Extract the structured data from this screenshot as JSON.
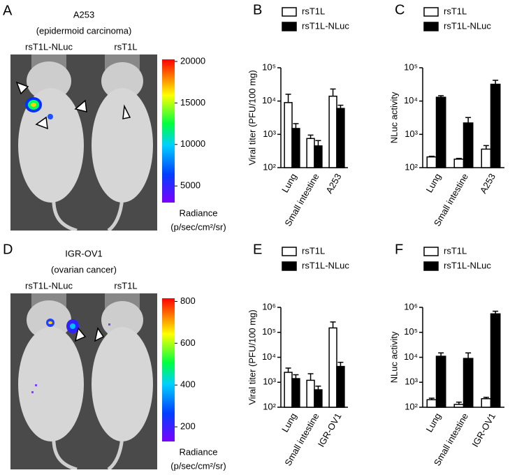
{
  "images": [
    {
      "panel": "A",
      "title": "A253",
      "subtitle": "(epidermoid carcinoma)",
      "mouse_labels": [
        "rsT1L-NLuc",
        "rsT1L"
      ],
      "colorbar": {
        "lim": [
          3000,
          20250
        ],
        "ticks": [
          5000,
          10000,
          15000,
          20000
        ],
        "label": "Radiance",
        "unit": "(p/sec/cm²/sr)"
      }
    },
    {
      "panel": "D",
      "title": "IGR-OV1",
      "subtitle": "(ovarian cancer)",
      "mouse_labels": [
        "rsT1L-NLuc",
        "rsT1L"
      ],
      "colorbar": {
        "lim": [
          130,
          815
        ],
        "ticks": [
          200,
          400,
          600,
          800
        ],
        "label": "Radiance",
        "unit": "(p/sec/cm²/sr)"
      }
    }
  ],
  "chart_data": [
    {
      "type": "bar",
      "panel": "B",
      "ylabel": "Viral titer (PFU/100 mg)",
      "log_scale": true,
      "categories": [
        "Lung",
        "Small intestine",
        "A253"
      ],
      "series": [
        {
          "name": "rsT1L",
          "color": "#ffffff",
          "values": [
            9000,
            750,
            14000
          ],
          "errors": [
            7000,
            200,
            9000
          ]
        },
        {
          "name": "rsT1L-NLuc",
          "color": "#000000",
          "values": [
            1500,
            450,
            6000
          ],
          "errors": [
            600,
            200,
            1500
          ]
        }
      ],
      "ylim": [
        100,
        100000
      ],
      "yticks": [
        {
          "value": 100,
          "label": "10²"
        },
        {
          "value": 1000,
          "label": "10³"
        },
        {
          "value": 10000,
          "label": "10⁴"
        },
        {
          "value": 100000,
          "label": "10⁵"
        }
      ]
    },
    {
      "type": "bar",
      "panel": "C",
      "ylabel": "NLuc activity",
      "log_scale": true,
      "categories": [
        "Lung",
        "Small intestine",
        "A253"
      ],
      "series": [
        {
          "name": "rsT1L",
          "color": "#ffffff",
          "values": [
            210,
            180,
            360
          ],
          "errors": [
            10,
            10,
            100
          ]
        },
        {
          "name": "rsT1L-NLuc",
          "color": "#000000",
          "values": [
            13000,
            2200,
            32000
          ],
          "errors": [
            1500,
            1000,
            10000
          ]
        }
      ],
      "ylim": [
        100,
        100000
      ],
      "yticks": [
        {
          "value": 100,
          "label": "10²"
        },
        {
          "value": 1000,
          "label": "10³"
        },
        {
          "value": 10000,
          "label": "10⁴"
        },
        {
          "value": 100000,
          "label": "10⁵"
        }
      ]
    },
    {
      "type": "bar",
      "panel": "E",
      "ylabel": "Viral titer (PFU/100 mg)",
      "log_scale": true,
      "categories": [
        "Lung",
        "Small intestine",
        "IGR-OV1"
      ],
      "series": [
        {
          "name": "rsT1L",
          "color": "#ffffff",
          "values": [
            2500,
            1200,
            150000
          ],
          "errors": [
            1200,
            1000,
            110000
          ]
        },
        {
          "name": "rsT1L-NLuc",
          "color": "#000000",
          "values": [
            1400,
            500,
            4300
          ],
          "errors": [
            600,
            200,
            2000
          ]
        }
      ],
      "ylim": [
        100,
        1000000
      ],
      "yticks": [
        {
          "value": 100,
          "label": "10²"
        },
        {
          "value": 1000,
          "label": "10³"
        },
        {
          "value": 10000,
          "label": "10⁴"
        },
        {
          "value": 100000,
          "label": "10⁵"
        },
        {
          "value": 1000000,
          "label": "10⁶"
        }
      ]
    },
    {
      "type": "bar",
      "panel": "F",
      "ylabel": "NLuc activity",
      "log_scale": true,
      "categories": [
        "Lung",
        "Small intestine",
        "IGR-OV1"
      ],
      "series": [
        {
          "name": "rsT1L",
          "color": "#ffffff",
          "values": [
            200,
            130,
            220
          ],
          "errors": [
            30,
            30,
            30
          ]
        },
        {
          "name": "rsT1L-NLuc",
          "color": "#000000",
          "values": [
            11000,
            9000,
            550000
          ],
          "errors": [
            4000,
            6000,
            150000
          ]
        }
      ],
      "ylim": [
        100,
        1000000
      ],
      "yticks": [
        {
          "value": 100,
          "label": "10²"
        },
        {
          "value": 1000,
          "label": "10³"
        },
        {
          "value": 10000,
          "label": "10⁴"
        },
        {
          "value": 100000,
          "label": "10⁵"
        },
        {
          "value": 1000000,
          "label": "10⁶"
        }
      ]
    }
  ]
}
